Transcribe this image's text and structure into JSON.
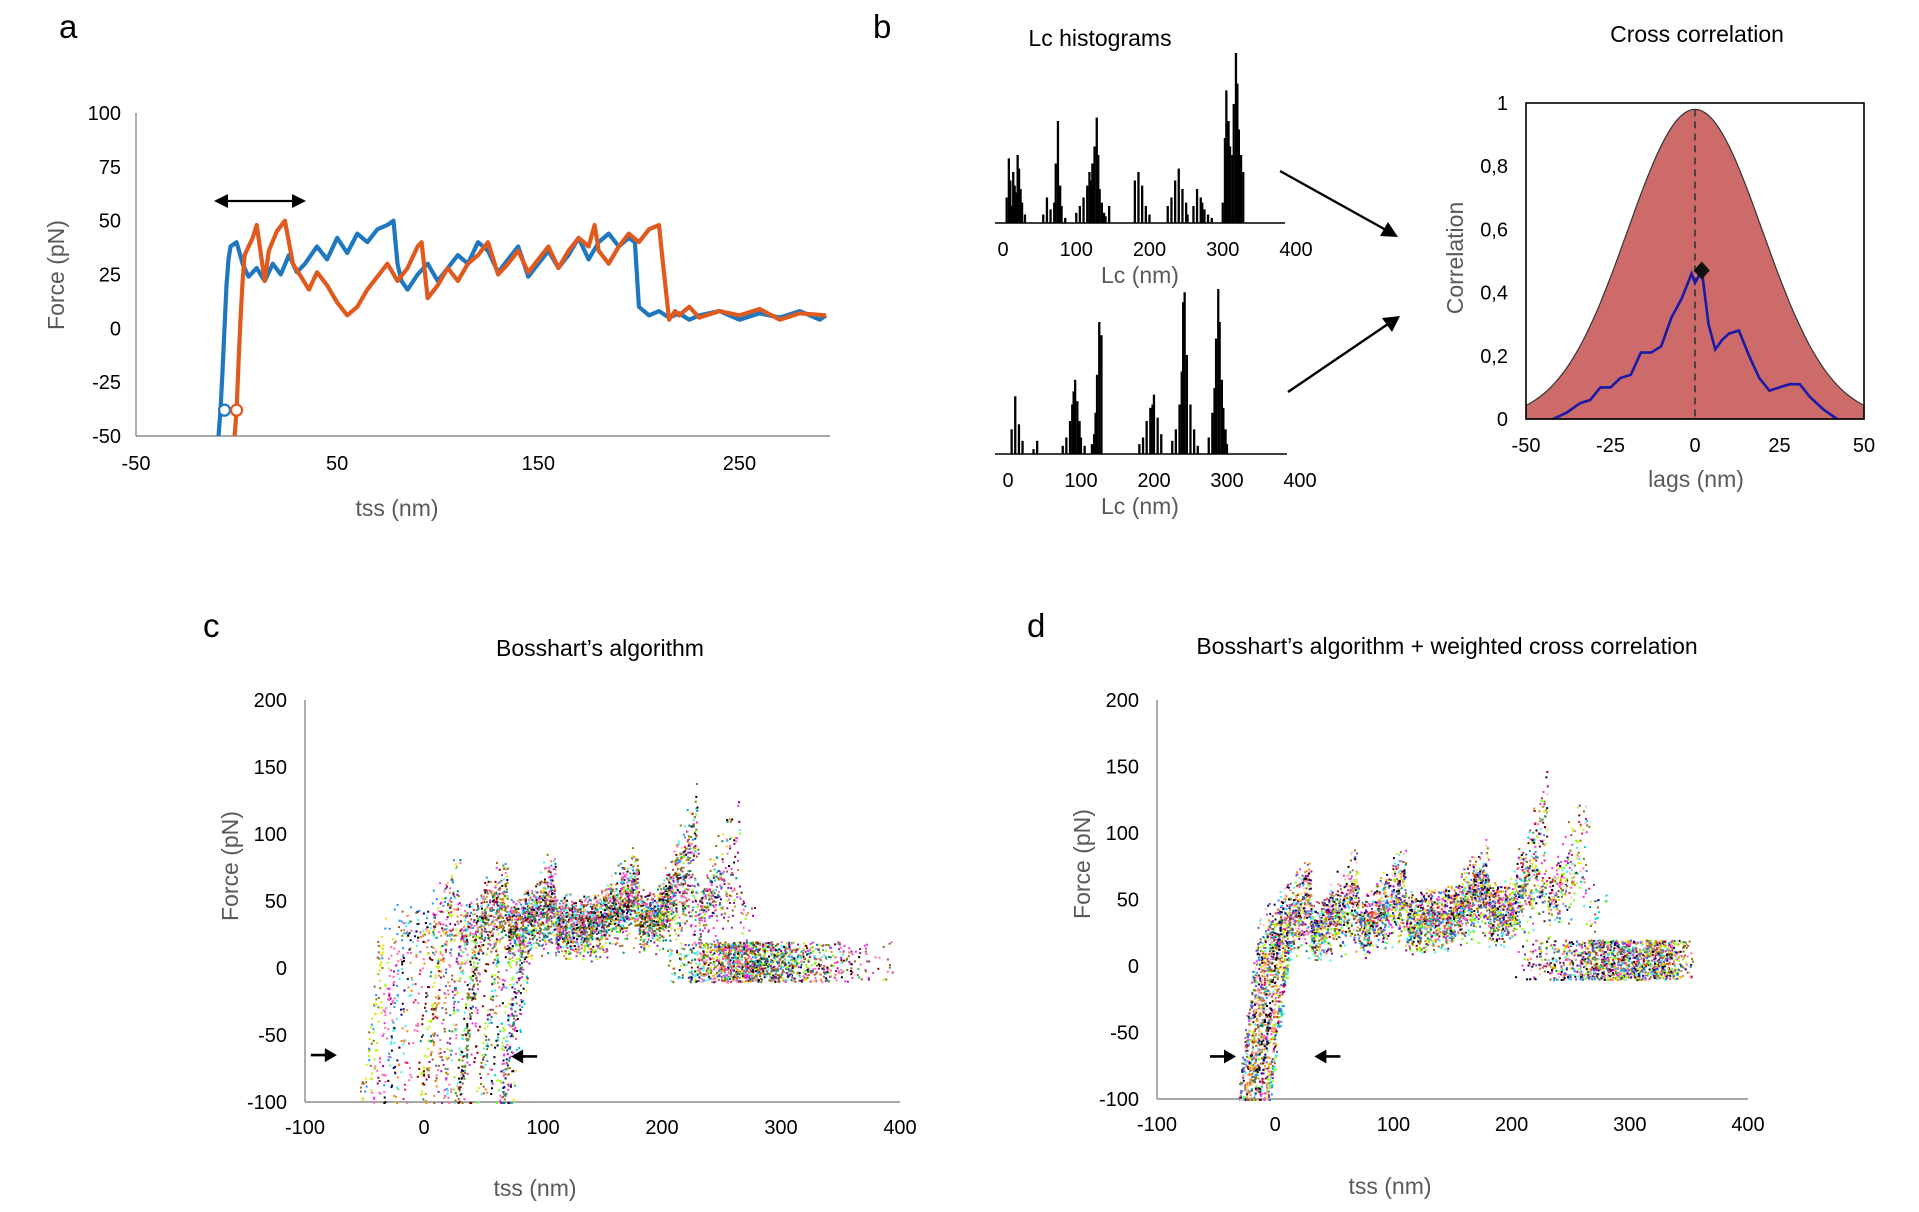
{
  "panels": {
    "a": "a",
    "b": "b",
    "c": "c",
    "d": "d"
  },
  "titles": {
    "b_hist": "Lc histograms",
    "b_cc": "Cross correlation",
    "c": "Bosshart’s algorithm",
    "d": "Bosshart’s algorithm + weighted cross correlation"
  },
  "colors": {
    "blue": "#1f77c0",
    "orange": "#e05a1e",
    "cc_fill": "#cd6b6b",
    "cc_line": "#1a1aa8"
  },
  "chart_data": [
    {
      "id": "a",
      "type": "line",
      "xlabel": "tss (nm)",
      "ylabel": "Force (pN)",
      "xlim": [
        -50,
        295
      ],
      "ylim": [
        -50,
        100
      ],
      "xticks": [
        -50,
        50,
        150,
        250
      ],
      "yticks": [
        100,
        75,
        50,
        25,
        0,
        -25,
        -50
      ],
      "annotations": [
        "double-headed arrow spanning tss -10 to 35 at Force 58"
      ],
      "series": [
        {
          "name": "blue trace",
          "color": "#1f77c0",
          "x": [
            -9,
            -8,
            -7,
            -6,
            -5,
            -4,
            -3,
            0,
            3,
            6,
            10,
            14,
            18,
            22,
            26,
            30,
            34,
            40,
            45,
            50,
            55,
            60,
            65,
            70,
            75,
            78,
            80,
            82,
            85,
            90,
            95,
            100,
            105,
            110,
            115,
            120,
            125,
            130,
            135,
            140,
            145,
            150,
            155,
            160,
            165,
            170,
            175,
            180,
            185,
            190,
            195,
            198,
            200,
            205,
            210,
            215,
            220,
            225,
            230,
            240,
            250,
            260,
            270,
            280,
            290,
            293
          ],
          "y": [
            -50,
            -38,
            -20,
            0,
            20,
            32,
            38,
            40,
            30,
            24,
            28,
            22,
            30,
            25,
            34,
            26,
            30,
            38,
            32,
            42,
            35,
            44,
            40,
            46,
            48,
            50,
            30,
            22,
            18,
            25,
            30,
            22,
            28,
            34,
            30,
            40,
            36,
            26,
            32,
            38,
            24,
            30,
            36,
            28,
            34,
            42,
            32,
            40,
            44,
            38,
            42,
            40,
            10,
            6,
            8,
            5,
            7,
            4,
            6,
            8,
            4,
            7,
            5,
            8,
            4,
            6
          ]
        },
        {
          "name": "orange trace",
          "color": "#e05a1e",
          "x": [
            -1,
            0,
            1,
            2,
            3,
            4,
            6,
            8,
            10,
            12,
            14,
            16,
            20,
            24,
            28,
            32,
            36,
            40,
            45,
            50,
            55,
            60,
            65,
            70,
            75,
            80,
            85,
            90,
            92,
            95,
            100,
            105,
            110,
            115,
            120,
            125,
            130,
            135,
            140,
            145,
            150,
            155,
            160,
            165,
            170,
            175,
            178,
            180,
            185,
            190,
            195,
            200,
            205,
            210,
            212,
            215,
            218,
            220,
            225,
            230,
            240,
            250,
            260,
            270,
            280,
            293
          ],
          "y": [
            -50,
            -38,
            -15,
            5,
            22,
            34,
            38,
            42,
            48,
            35,
            22,
            36,
            45,
            50,
            30,
            24,
            18,
            26,
            20,
            12,
            6,
            10,
            18,
            24,
            30,
            22,
            28,
            38,
            40,
            14,
            20,
            28,
            22,
            30,
            34,
            40,
            25,
            30,
            36,
            26,
            32,
            38,
            28,
            36,
            42,
            38,
            48,
            36,
            30,
            38,
            44,
            40,
            46,
            48,
            30,
            4,
            8,
            6,
            10,
            5,
            8,
            6,
            9,
            4,
            7,
            6
          ]
        }
      ],
      "markers": [
        {
          "x": -6,
          "y": -38,
          "color": "#1f77c0"
        },
        {
          "x": 0,
          "y": -38,
          "color": "#e05a1e"
        }
      ]
    },
    {
      "id": "b_hist_top",
      "type": "bar",
      "color": "#000000",
      "xlabel": "Lc (nm)",
      "xlim": [
        0,
        400
      ],
      "xticks": [
        0,
        100,
        200,
        300,
        400
      ],
      "x": [
        5,
        8,
        10,
        12,
        14,
        16,
        18,
        20,
        22,
        24,
        26,
        30,
        55,
        60,
        65,
        70,
        72,
        75,
        78,
        80,
        85,
        100,
        105,
        110,
        115,
        118,
        120,
        122,
        125,
        128,
        130,
        132,
        135,
        138,
        140,
        145,
        180,
        185,
        190,
        195,
        200,
        225,
        230,
        235,
        240,
        245,
        250,
        252,
        260,
        265,
        270,
        272,
        275,
        280,
        285,
        300,
        303,
        305,
        308,
        310,
        313,
        315,
        318,
        320,
        322,
        325,
        328
      ],
      "y": [
        0.15,
        0.38,
        0.25,
        0.1,
        0.3,
        0.22,
        0.18,
        0.4,
        0.32,
        0.2,
        0.12,
        0.05,
        0.05,
        0.15,
        0.08,
        0.12,
        0.35,
        0.6,
        0.22,
        0.1,
        0.03,
        0.06,
        0.1,
        0.15,
        0.22,
        0.3,
        0.25,
        0.35,
        0.45,
        0.62,
        0.4,
        0.2,
        0.12,
        0.06,
        0.04,
        0.1,
        0.25,
        0.3,
        0.22,
        0.1,
        0.05,
        0.1,
        0.15,
        0.25,
        0.32,
        0.2,
        0.12,
        0.05,
        0.1,
        0.2,
        0.15,
        0.12,
        0.08,
        0.05,
        0.03,
        0.12,
        0.5,
        0.78,
        0.6,
        0.45,
        0.4,
        0.7,
        1.0,
        0.82,
        0.55,
        0.4,
        0.3
      ]
    },
    {
      "id": "b_hist_bottom",
      "type": "bar",
      "color": "#000000",
      "xlabel": "Lc (nm)",
      "xlim": [
        0,
        400
      ],
      "xticks": [
        0,
        100,
        200,
        300,
        400
      ],
      "x": [
        5,
        10,
        15,
        20,
        35,
        40,
        75,
        80,
        85,
        88,
        90,
        92,
        95,
        98,
        100,
        105,
        115,
        118,
        120,
        122,
        125,
        128,
        180,
        185,
        190,
        195,
        198,
        200,
        205,
        210,
        225,
        230,
        235,
        238,
        240,
        242,
        245,
        250,
        255,
        260,
        275,
        280,
        283,
        285,
        288,
        290,
        293,
        295,
        298,
        300
      ],
      "y": [
        0.15,
        0.35,
        0.18,
        0.08,
        0.03,
        0.08,
        0.05,
        0.1,
        0.2,
        0.3,
        0.38,
        0.45,
        0.32,
        0.2,
        0.1,
        0.05,
        0.06,
        0.12,
        0.25,
        0.48,
        0.8,
        0.72,
        0.06,
        0.1,
        0.2,
        0.28,
        0.3,
        0.36,
        0.22,
        0.12,
        0.08,
        0.15,
        0.3,
        0.5,
        0.92,
        0.98,
        0.6,
        0.3,
        0.15,
        0.05,
        0.1,
        0.25,
        0.4,
        0.7,
        1.0,
        0.8,
        0.45,
        0.28,
        0.15,
        0.06
      ]
    },
    {
      "id": "b_cc",
      "type": "area",
      "xlabel": "lags (nm)",
      "ylabel": "Correlation",
      "xlim": [
        -50,
        50
      ],
      "ylim": [
        0,
        1
      ],
      "xticks": [
        -50,
        -25,
        0,
        25,
        50
      ],
      "ytick_labels": [
        "1",
        "0,8",
        "0,6",
        "0,4",
        "0,2",
        "0"
      ],
      "yticks": [
        1,
        0.8,
        0.6,
        0.4,
        0.2,
        0
      ],
      "gaussian": {
        "sigma": 20,
        "amplitude": 0.98,
        "center": 0
      },
      "line": {
        "x": [
          -42,
          -38,
          -34,
          -31,
          -28,
          -25,
          -22,
          -19,
          -16,
          -13,
          -10,
          -7,
          -4,
          -1,
          0,
          2,
          4,
          6,
          8,
          10,
          13,
          16,
          19,
          22,
          25,
          28,
          31,
          34,
          38,
          42
        ],
        "y": [
          0,
          0.02,
          0.05,
          0.06,
          0.1,
          0.1,
          0.13,
          0.14,
          0.21,
          0.21,
          0.23,
          0.32,
          0.38,
          0.46,
          0.43,
          0.47,
          0.3,
          0.22,
          0.25,
          0.27,
          0.28,
          0.2,
          0.13,
          0.09,
          0.1,
          0.11,
          0.11,
          0.07,
          0.03,
          0
        ]
      },
      "peak": {
        "x": 2,
        "y": 0.47
      },
      "dashed_vline_x": 0
    },
    {
      "id": "c",
      "type": "scatter",
      "title": "Bosshart’s algorithm",
      "xlabel": "tss (nm)",
      "ylabel": "Force (pN)",
      "xlim": [
        -100,
        400
      ],
      "ylim": [
        -100,
        200
      ],
      "xticks": [
        -100,
        0,
        100,
        200,
        300,
        400
      ],
      "yticks": [
        200,
        150,
        100,
        50,
        0,
        -50,
        -100
      ],
      "arrows": [
        {
          "x": -85,
          "y": -65,
          "dir": "right"
        },
        {
          "x": 85,
          "y": -66,
          "dir": "left"
        }
      ],
      "generator": {
        "curves": 90,
        "seed": 7,
        "x_start_range": [
          -55,
          75
        ],
        "x_end_range": [
          240,
          400
        ]
      }
    },
    {
      "id": "d",
      "type": "scatter",
      "title": "Bosshart’s algorithm + weighted cross correlation",
      "xlabel": "tss (nm)",
      "ylabel": "Force (pN)",
      "xlim": [
        -100,
        400
      ],
      "ylim": [
        -100,
        200
      ],
      "xticks": [
        -100,
        0,
        100,
        200,
        300,
        400
      ],
      "yticks": [
        200,
        150,
        100,
        50,
        0,
        -50,
        -100
      ],
      "arrows": [
        {
          "x": -45,
          "y": -68,
          "dir": "right"
        },
        {
          "x": 45,
          "y": -68,
          "dir": "left"
        }
      ],
      "generator": {
        "curves": 90,
        "seed": 11,
        "x_start_range": [
          -32,
          -5
        ],
        "x_end_range": [
          330,
          355
        ]
      }
    }
  ]
}
